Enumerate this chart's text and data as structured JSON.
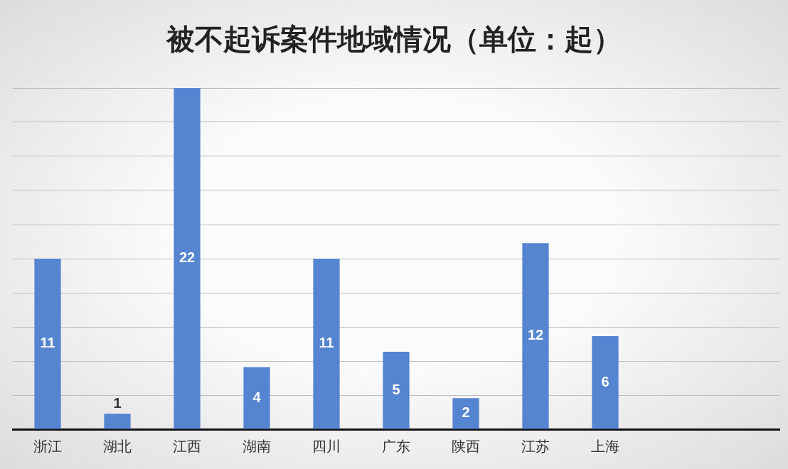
{
  "chart_data": {
    "type": "bar",
    "title": "被不起诉案件地域情况（单位：起）",
    "categories": [
      "浙江",
      "湖北",
      "江西",
      "湖南",
      "四川",
      "广东",
      "陕西",
      "江苏",
      "上海",
      null,
      null
    ],
    "values": [
      11,
      1,
      22,
      4,
      11,
      5,
      2,
      12,
      6,
      null,
      null
    ],
    "data_labels": true,
    "color": "#5584d0",
    "grid": "y",
    "legend": false,
    "tick_labels": "x"
  }
}
